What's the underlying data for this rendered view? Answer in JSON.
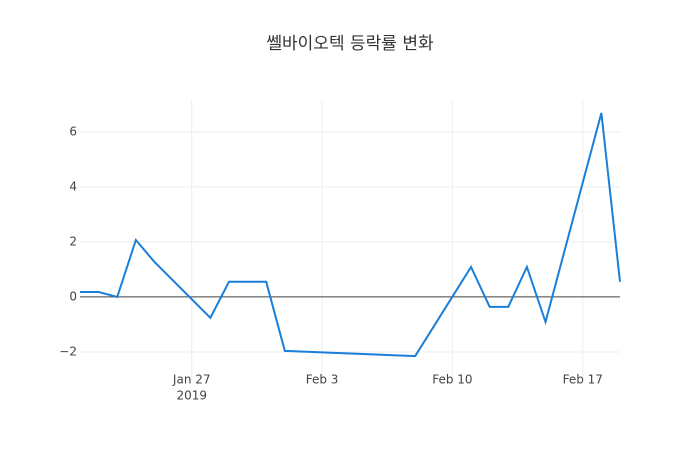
{
  "chart_data": {
    "type": "line",
    "title": "쎌바이오텍 등락률 변화",
    "x": [
      "2019-01-21",
      "2019-01-22",
      "2019-01-23",
      "2019-01-24",
      "2019-01-25",
      "2019-01-28",
      "2019-01-29",
      "2019-01-31",
      "2019-02-01",
      "2019-02-08",
      "2019-02-11",
      "2019-02-12",
      "2019-02-13",
      "2019-02-14",
      "2019-02-15",
      "2019-02-18",
      "2019-02-19"
    ],
    "series": [
      {
        "name": "등락률",
        "color": "#1a7fd8",
        "values": [
          0.18,
          0.18,
          0,
          2.07,
          1.27,
          -0.76,
          0.55,
          0.55,
          -1.96,
          -2.15,
          1.09,
          -0.36,
          -0.36,
          1.09,
          -0.91,
          6.69,
          0.55
        ]
      }
    ],
    "xlim": [
      "2019-01-21",
      "2019-02-19"
    ],
    "xticks": [
      {
        "value": "2019-01-27",
        "label": "Jan 27"
      },
      {
        "value": "2019-02-03",
        "label": "Feb 3"
      },
      {
        "value": "2019-02-10",
        "label": "Feb 10"
      },
      {
        "value": "2019-02-17",
        "label": "Feb 17"
      }
    ],
    "xtick_year": "2019",
    "ylim": [
      -3.02,
      7.16
    ],
    "yticks": [
      {
        "value": -2,
        "label": "−2"
      },
      0,
      2,
      4,
      6
    ],
    "grid": true,
    "zeroline": true,
    "legend": false
  }
}
